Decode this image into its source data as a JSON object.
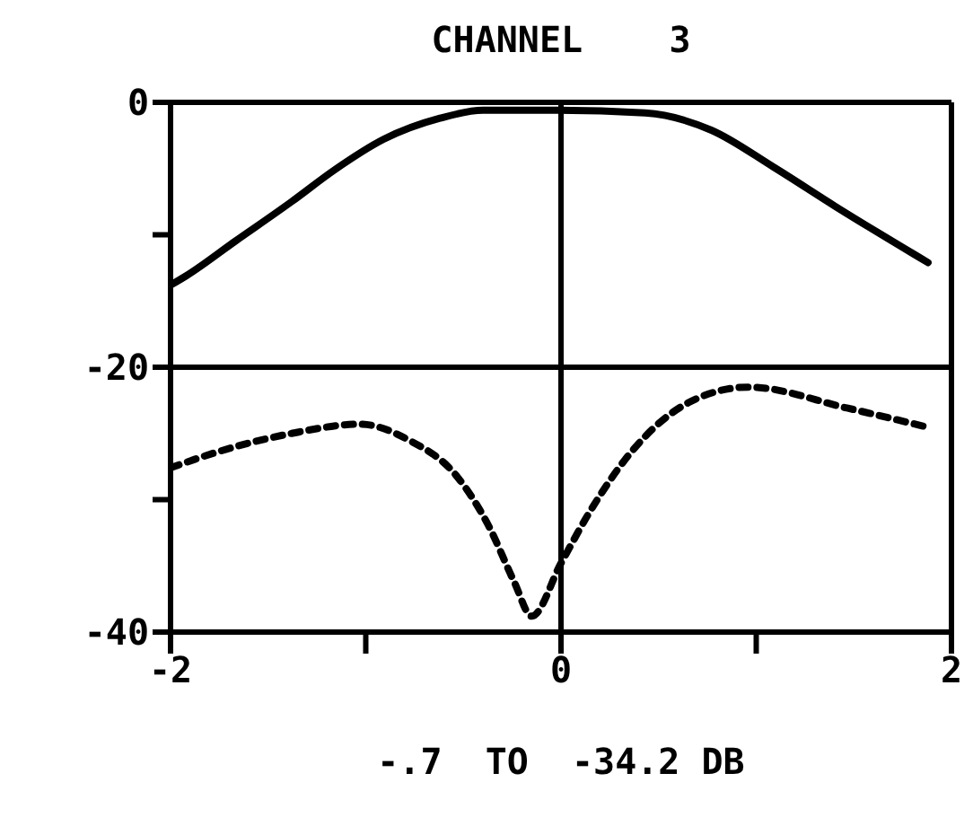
{
  "chart_data": {
    "type": "line",
    "title": "CHANNEL    3",
    "xlabel": "-.7  TO  -34.2 DB",
    "xlim": [
      -2,
      2
    ],
    "xticks": [
      -2,
      {
        "value": -1,
        "label": null
      },
      0,
      {
        "value": 1,
        "label": null
      },
      2
    ],
    "ylim": [
      -40,
      0
    ],
    "yticks": [
      -40,
      {
        "value": -30,
        "label": null
      },
      -20,
      {
        "value": -10,
        "label": null
      },
      0
    ],
    "grid": true,
    "marker": "none",
    "series": [
      {
        "color": "#000000",
        "line_style": "solid",
        "x": [
          -2,
          -1.92,
          -1.67,
          -1.38,
          -1.16,
          -0.91,
          -0.62,
          -0.4,
          -0.02,
          0.43,
          0.77,
          1.09,
          1.41,
          1.88
        ],
        "values": [
          -13.8,
          -13.1,
          -10.5,
          -7.5,
          -5.1,
          -2.8,
          -1.2,
          -0.6,
          -0.6,
          -0.8,
          -2.1,
          -4.9,
          -7.9,
          -12.1
        ]
      },
      {
        "color": "#000000",
        "line_style": "dotted",
        "x": [
          -2,
          -1.76,
          -1.38,
          -1.03,
          -0.78,
          -0.53,
          -0.37,
          -0.24,
          -0.15,
          0,
          0.14,
          0.36,
          0.65,
          0.96,
          1.47,
          1.87
        ],
        "values": [
          -27.6,
          -26.4,
          -25.0,
          -24.3,
          -25.5,
          -28.3,
          -32.0,
          -36.2,
          -38.8,
          -34.8,
          -31.1,
          -26.4,
          -22.7,
          -21.5,
          -23.1,
          -24.5
        ]
      }
    ]
  }
}
